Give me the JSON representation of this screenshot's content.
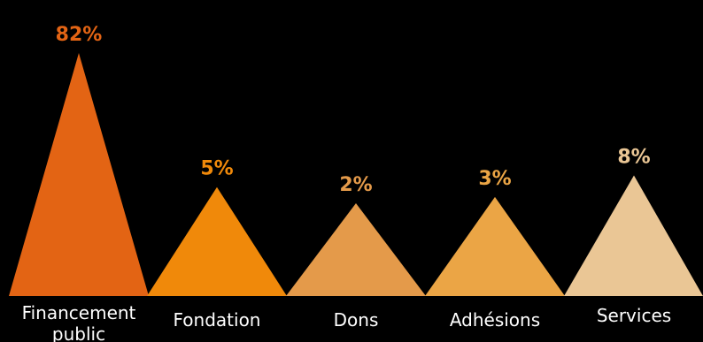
{
  "chart_data": {
    "type": "bar",
    "mark_shape": "triangle",
    "categories": [
      "Financement public",
      "Fondation",
      "Dons",
      "Adhésions",
      "Services"
    ],
    "category_label_lines": [
      [
        "Financement",
        "public"
      ],
      [
        "Fondation"
      ],
      [
        "Dons"
      ],
      [
        "Adhésions"
      ],
      [
        "Services"
      ]
    ],
    "values": [
      82,
      5,
      2,
      3,
      8
    ],
    "value_labels": [
      "82%",
      "5%",
      "2%",
      "3%",
      "8%"
    ],
    "colors": [
      "#E36414",
      "#F0890A",
      "#E49A4A",
      "#EBA545",
      "#EAC695"
    ],
    "value_label_colors": [
      "#E36414",
      "#F0890A",
      "#E49A4A",
      "#EBA545",
      "#EAC695"
    ],
    "background": "#000000",
    "title": "",
    "xlabel": "",
    "ylabel": "",
    "grid": false,
    "legend": "none"
  }
}
